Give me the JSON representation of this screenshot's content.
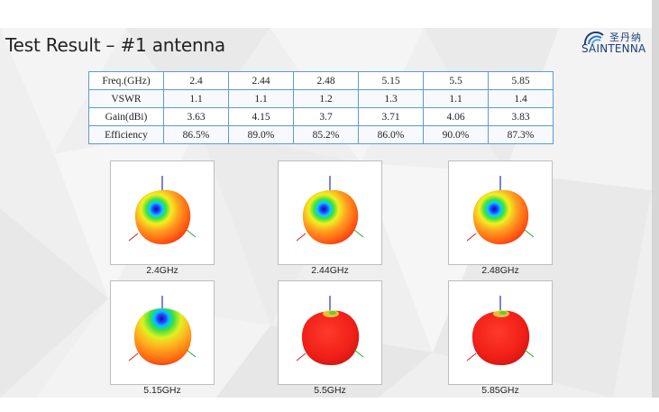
{
  "title": "Test Result – #1 antenna",
  "logo": {
    "cn_text": "圣丹纳",
    "en_text": "SAINTENNA",
    "color": "#1a3e7a"
  },
  "table": {
    "rows": [
      {
        "label": "Freq.(GHz)",
        "values": [
          "2.4",
          "2.44",
          "2.48",
          "5.15",
          "5.5",
          "5.85"
        ]
      },
      {
        "label": "VSWR",
        "values": [
          "1.1",
          "1.1",
          "1.2",
          "1.3",
          "1.1",
          "1.4"
        ]
      },
      {
        "label": "Gain(dBi)",
        "values": [
          "3.63",
          "4.15",
          "3.7",
          "3.71",
          "4.06",
          "3.83"
        ]
      },
      {
        "label": "Efficiency",
        "values": [
          "86.5%",
          "89.0%",
          "85.2%",
          "86.0%",
          "90.0%",
          "87.3%"
        ]
      }
    ],
    "border_color": "#5b9bd5"
  },
  "patterns": [
    {
      "caption": "2.4GHz",
      "style": "spotted"
    },
    {
      "caption": "2.44GHz",
      "style": "spotted"
    },
    {
      "caption": "2.48GHz",
      "style": "spotted"
    },
    {
      "caption": "5.15GHz",
      "style": "top-spot"
    },
    {
      "caption": "5.5GHz",
      "style": "red"
    },
    {
      "caption": "5.85GHz",
      "style": "red"
    }
  ]
}
